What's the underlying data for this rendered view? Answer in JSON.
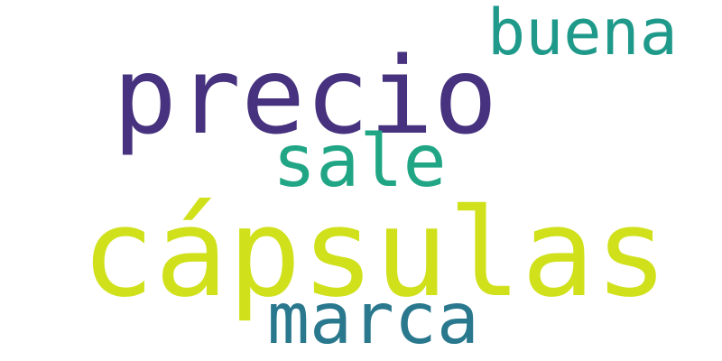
{
  "background": "#ffffff",
  "words": [
    {
      "text": "cápsulas",
      "color": "#d0e11c"
    },
    {
      "text": "precio",
      "color": "#46327e"
    },
    {
      "text": "buena",
      "color": "#1f9a8a"
    },
    {
      "text": "sale",
      "color": "#21a685"
    },
    {
      "text": "marca",
      "color": "#2a788e"
    }
  ]
}
